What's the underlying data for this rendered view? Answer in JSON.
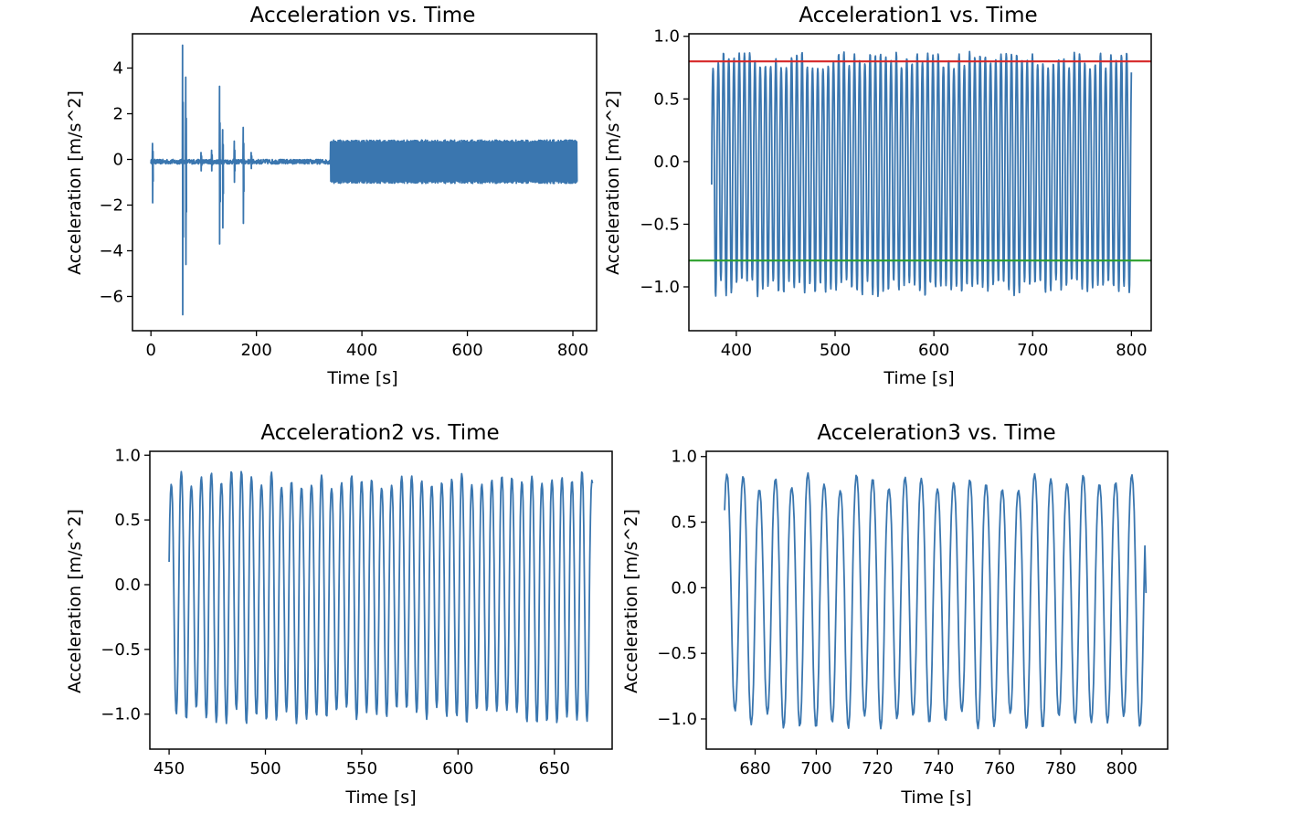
{
  "colors": {
    "series": "#3a76af",
    "upper_line": "#d62728",
    "lower_line": "#2ca02c"
  },
  "chart_data": [
    {
      "type": "line",
      "title": "Acceleration vs. Time",
      "xlabel": "Time [s]",
      "ylabel": "Acceleration [m/s^2]",
      "xlim": [
        -35,
        845
      ],
      "ylim": [
        -7.5,
        5.5
      ],
      "xticks": [
        0,
        200,
        400,
        600,
        800
      ],
      "yticks": [
        4,
        2,
        0,
        -2,
        -4,
        -6
      ],
      "series": [
        {
          "x_range": [
            0,
            808
          ],
          "segments": [
            {
              "x0": 0,
              "x1": 340,
              "amp": 0.1,
              "center": -0.1,
              "period": 3
            },
            {
              "x0": 340,
              "x1": 808,
              "amp": 0.95,
              "center": -0.1,
              "period": 1.2
            }
          ],
          "spikes": [
            {
              "x": 3,
              "lo": -1.9,
              "hi": 0.7
            },
            {
              "x": 60,
              "lo": -6.8,
              "hi": 5.0
            },
            {
              "x": 66,
              "lo": -4.6,
              "hi": 3.6
            },
            {
              "x": 95,
              "lo": -0.5,
              "hi": 0.3
            },
            {
              "x": 115,
              "lo": -0.5,
              "hi": 0.4
            },
            {
              "x": 130,
              "lo": -3.7,
              "hi": 3.2
            },
            {
              "x": 136,
              "lo": -3.0,
              "hi": 1.3
            },
            {
              "x": 158,
              "lo": -1.0,
              "hi": 0.8
            },
            {
              "x": 175,
              "lo": -2.8,
              "hi": 1.4
            },
            {
              "x": 190,
              "lo": -0.4,
              "hi": 0.3
            }
          ]
        }
      ]
    },
    {
      "type": "line",
      "title": "Acceleration1 vs. Time",
      "xlabel": "Time [s]",
      "ylabel": "Acceleration [m/s^2]",
      "xlim": [
        352,
        820
      ],
      "ylim": [
        -1.35,
        1.02
      ],
      "xticks": [
        400,
        500,
        600,
        700,
        800
      ],
      "yticks": [
        1.0,
        0.5,
        0.0,
        -0.5,
        -1.0
      ],
      "ytick_labels": [
        "1.0",
        "0.5",
        "0.0",
        "−0.5",
        "−1.0"
      ],
      "hlines": [
        {
          "y": 0.8,
          "color": "upper_line"
        },
        {
          "y": -0.79,
          "color": "lower_line"
        }
      ],
      "series": [
        {
          "x_range": [
            375,
            800
          ],
          "period": 5.3,
          "max": 0.85,
          "min": -1.05,
          "start_y": -0.25
        }
      ]
    },
    {
      "type": "line",
      "title": "Acceleration2 vs. Time",
      "xlabel": "Time [s]",
      "ylabel": "Acceleration [m/s^2]",
      "xlim": [
        440,
        680
      ],
      "ylim": [
        -1.27,
        1.03
      ],
      "xticks": [
        450,
        500,
        550,
        600,
        650
      ],
      "yticks": [
        1.0,
        0.5,
        0.0,
        -0.5,
        -1.0
      ],
      "ytick_labels": [
        "1.0",
        "0.5",
        "0.0",
        "−0.5",
        "−1.0"
      ],
      "series": [
        {
          "x_range": [
            450,
            670
          ],
          "period": 5.2,
          "max": 0.85,
          "min": -1.05,
          "start_y": 0.08
        }
      ]
    },
    {
      "type": "line",
      "title": "Acceleration3 vs. Time",
      "xlabel": "Time [s]",
      "ylabel": "Acceleration [m/s^2]",
      "xlim": [
        664,
        815
      ],
      "ylim": [
        -1.23,
        1.04
      ],
      "xticks": [
        680,
        700,
        720,
        740,
        760,
        780,
        800
      ],
      "yticks": [
        1.0,
        0.5,
        0.0,
        -0.5,
        -1.0
      ],
      "ytick_labels": [
        "1.0",
        "0.5",
        "0.0",
        "−0.5",
        "−1.0"
      ],
      "series": [
        {
          "x_range": [
            670,
            808
          ],
          "period": 5.3,
          "max": 0.85,
          "min": -1.05,
          "start_y": 0.48,
          "end_y": -0.04
        }
      ]
    }
  ]
}
